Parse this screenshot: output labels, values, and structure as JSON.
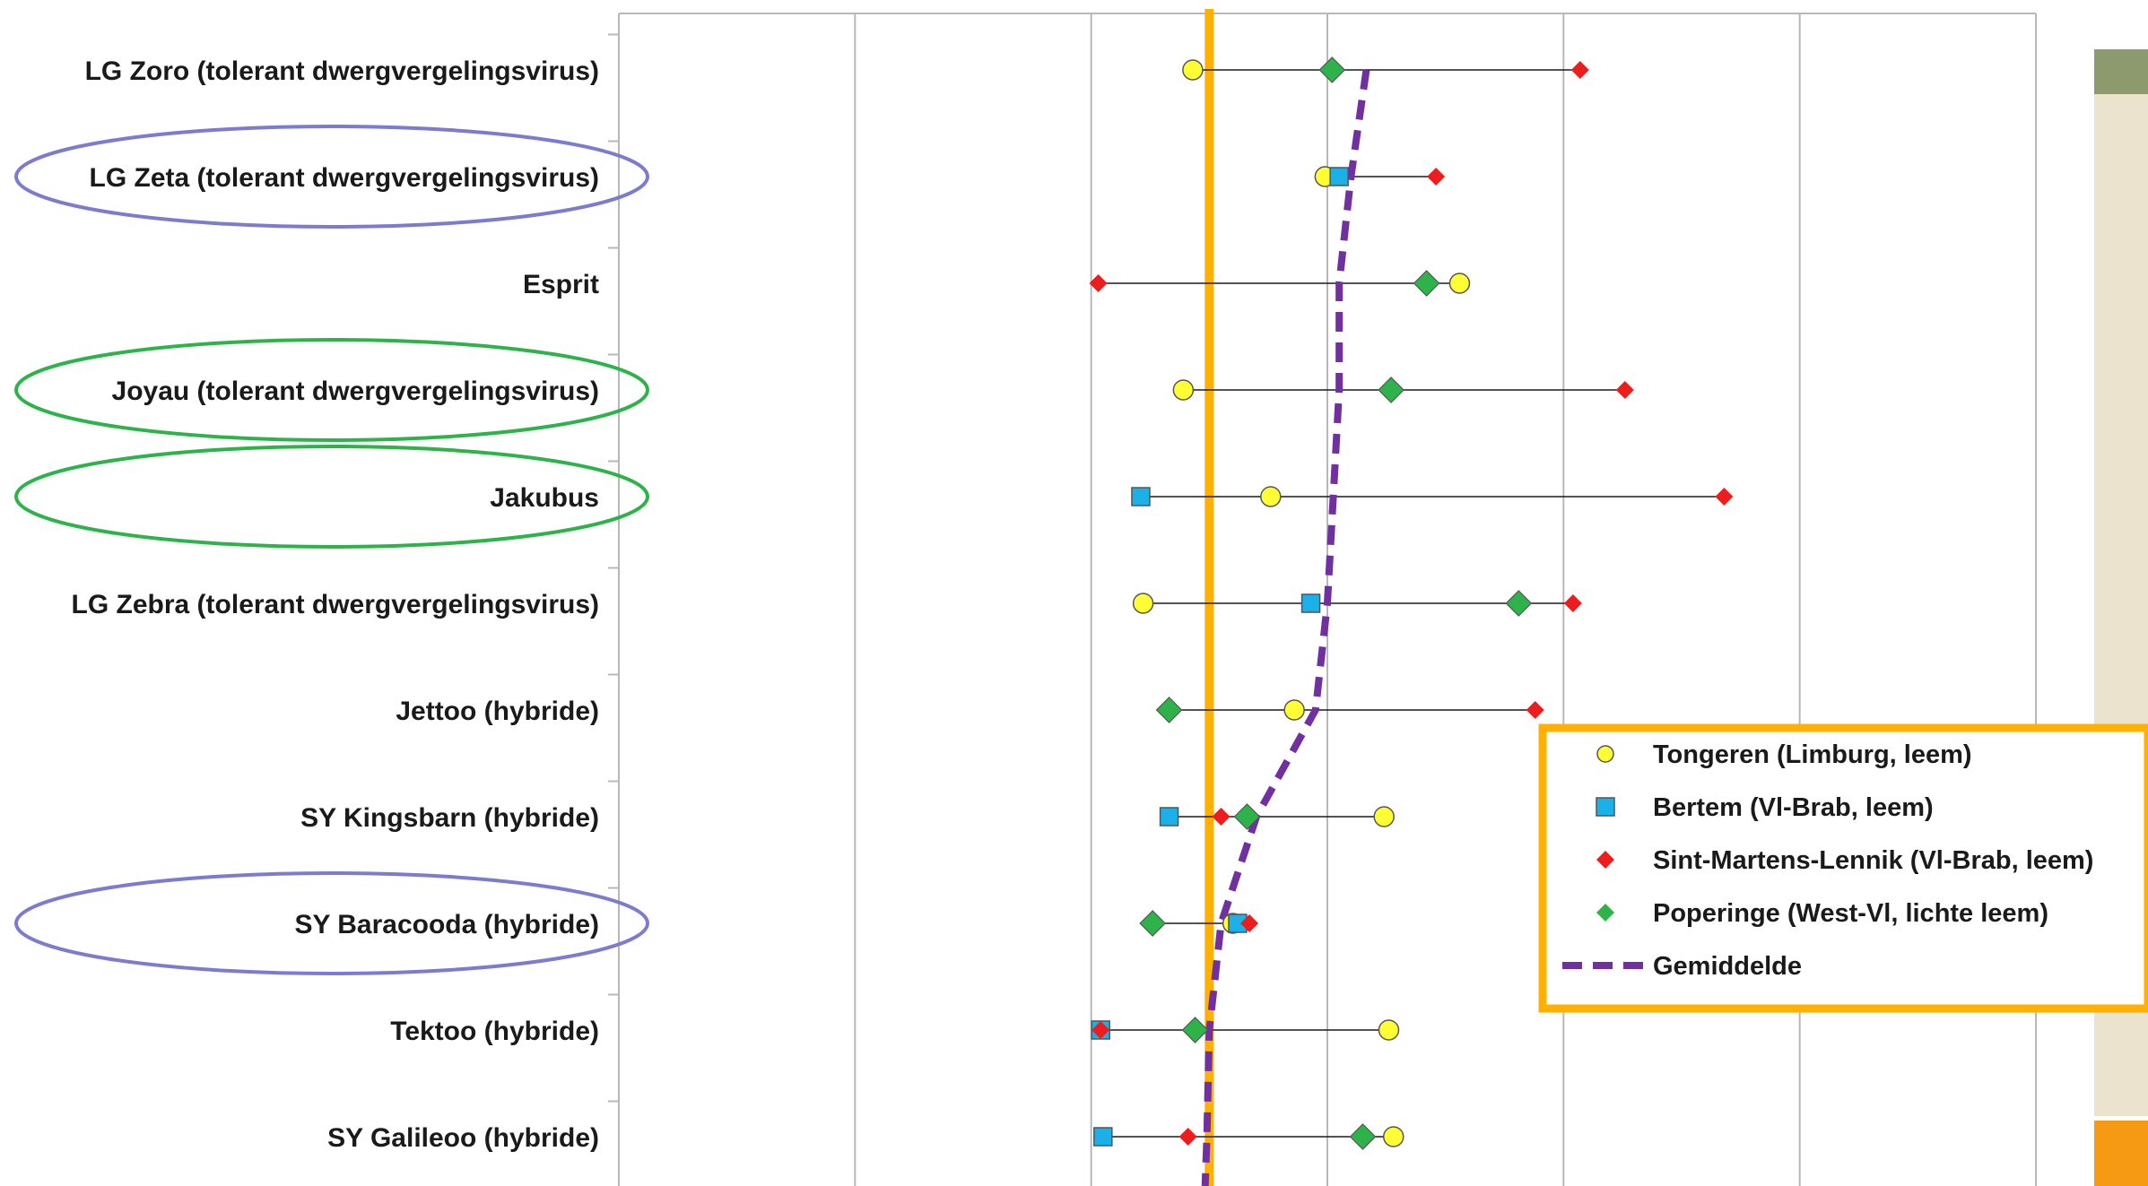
{
  "chart_data": {
    "type": "scatter",
    "orientation": "horizontal",
    "title": "",
    "xlabel": "",
    "ylabel": "",
    "xlim": [
      0.75,
      1.35
    ],
    "x_grid_step": 0.1,
    "grid": true,
    "reference_line": {
      "x": 1.0,
      "color": "#ffb000"
    },
    "categories": [
      "LG Zoro (tolerant dwergvergelingsvirus)",
      "LG Zeta (tolerant dwergvergelingsvirus)",
      "Esprit",
      "Joyau (tolerant dwergvergelingsvirus)",
      "Jakubus",
      "LG Zebra (tolerant dwergvergelingsvirus)",
      "Jettoo (hybride)",
      "SY Kingsbarn (hybride)",
      "SY Baracooda (hybride)",
      "Tektoo (hybride)",
      "SY Galileoo (hybride)"
    ],
    "highlights": [
      {
        "category_index": 1,
        "color": "#7b7bd0"
      },
      {
        "category_index": 3,
        "color": "#2db34a"
      },
      {
        "category_index": 4,
        "color": "#2db34a"
      },
      {
        "category_index": 8,
        "color": "#7b7bd0"
      }
    ],
    "series": [
      {
        "name": "Tongeren (Limburg, leem)",
        "marker": "circle",
        "color": "#ffff33",
        "values": [
          0.993,
          1.049,
          1.106,
          0.989,
          1.026,
          0.972,
          1.036,
          1.074,
          1.01,
          1.076,
          1.078
        ]
      },
      {
        "name": "Bertem (Vl-Brab, leem)",
        "marker": "square",
        "color": "#1cb0e8",
        "values": [
          null,
          1.055,
          null,
          null,
          0.971,
          1.043,
          null,
          0.983,
          1.012,
          0.954,
          0.955
        ]
      },
      {
        "name": "Sint-Martens-Lennik (Vl-Brab, leem)",
        "marker": "diamond-small",
        "color": "#ee1c1c",
        "values": [
          1.157,
          1.096,
          0.953,
          1.176,
          1.218,
          1.154,
          1.138,
          1.005,
          1.017,
          0.954,
          0.991
        ]
      },
      {
        "name": "Poperinge (West-Vl, lichte leem)",
        "marker": "diamond",
        "color": "#2db34a",
        "values": [
          1.052,
          null,
          1.092,
          1.077,
          null,
          1.131,
          0.983,
          1.016,
          0.976,
          0.994,
          1.065
        ]
      },
      {
        "name": "Gemiddelde",
        "marker": "dashed-line",
        "color": "#7030a0",
        "values": [
          1.0665,
          1.06,
          1.055,
          1.055,
          1.0525,
          1.05,
          1.045,
          1.02,
          1.005,
          1.0,
          0.999
        ]
      }
    ],
    "legend": {
      "placement": "bottom-right"
    }
  }
}
